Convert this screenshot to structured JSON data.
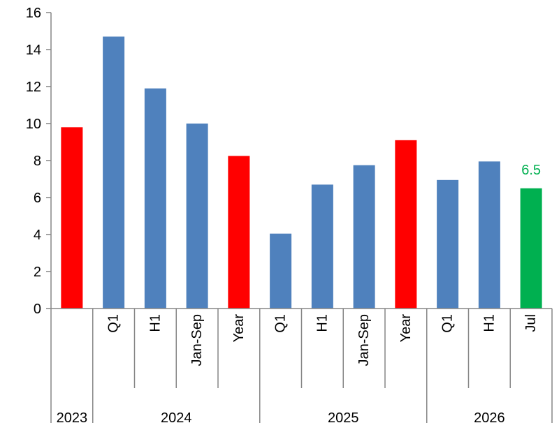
{
  "chart_data": {
    "type": "bar",
    "ylim": [
      0,
      16
    ],
    "yticks": [
      0,
      2,
      4,
      6,
      8,
      10,
      12,
      14,
      16
    ],
    "grid": false,
    "legend": "none",
    "groups": [
      {
        "label": "2023",
        "categories": [
          ""
        ]
      },
      {
        "label": "2024",
        "categories": [
          "Q1",
          "H1",
          "Jan-Sep",
          "Year"
        ]
      },
      {
        "label": "2025",
        "categories": [
          "Q1",
          "H1",
          "Jan-Sep",
          "Year"
        ]
      },
      {
        "label": "2026",
        "categories": [
          "Q1",
          "H1",
          "Jul"
        ]
      }
    ],
    "values": [
      9.8,
      14.7,
      11.9,
      10.0,
      8.25,
      4.05,
      6.7,
      7.75,
      9.1,
      6.95,
      7.95,
      6.5
    ],
    "colors": [
      "#ff0000",
      "#4f81bd",
      "#4f81bd",
      "#4f81bd",
      "#ff0000",
      "#4f81bd",
      "#4f81bd",
      "#4f81bd",
      "#ff0000",
      "#4f81bd",
      "#4f81bd",
      "#00b050"
    ],
    "data_labels": [
      null,
      null,
      null,
      null,
      null,
      null,
      null,
      null,
      null,
      null,
      null,
      "6.5"
    ],
    "data_label_color": "#00b050"
  }
}
